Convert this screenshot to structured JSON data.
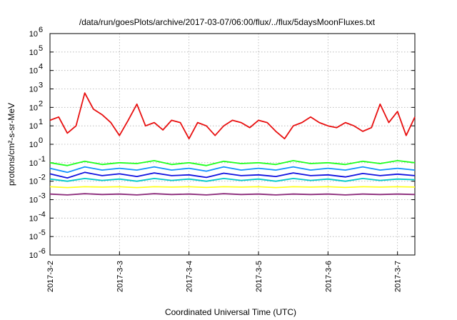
{
  "chart_data": {
    "type": "line",
    "title": "/data/run/goesPlots/archive/2017-03-07/06:00/flux/../flux/5daysMoonFluxes.txt",
    "xlabel": "Coordinated Universal Time (UTC)",
    "ylabel": "protons/cm²-s-sr-MeV",
    "yscale": "log",
    "xlim": [
      "2017-03-02",
      "2017-03-07 06:00"
    ],
    "ylim": [
      1e-06,
      1000000.0
    ],
    "grid": true,
    "legend": "none",
    "x_tick_labels": [
      "2017-3-2",
      "2017-3-3",
      "2017-3-4",
      "2017-3-5",
      "2017-3-6",
      "2017-3-7"
    ],
    "y_tick_labels": [
      {
        "base": "10",
        "exp": "-6"
      },
      {
        "base": "10",
        "exp": "-5"
      },
      {
        "base": "10",
        "exp": "-4"
      },
      {
        "base": "10",
        "exp": "-3"
      },
      {
        "base": "10",
        "exp": "-2"
      },
      {
        "base": "10",
        "exp": "-1"
      },
      {
        "base": "10",
        "exp": "0"
      },
      {
        "base": "10",
        "exp": "1"
      },
      {
        "base": "10",
        "exp": "2"
      },
      {
        "base": "10",
        "exp": "3"
      },
      {
        "base": "10",
        "exp": "4"
      },
      {
        "base": "10",
        "exp": "5"
      },
      {
        "base": "10",
        "exp": "6"
      }
    ],
    "series": [
      {
        "color": "#e81010",
        "x": [
          "2017-03-02 00:00",
          "2017-03-02 03:00",
          "2017-03-02 06:00",
          "2017-03-02 09:00",
          "2017-03-02 12:00",
          "2017-03-02 15:00",
          "2017-03-02 18:00",
          "2017-03-02 21:00",
          "2017-03-03 00:00",
          "2017-03-03 03:00",
          "2017-03-03 06:00",
          "2017-03-03 09:00",
          "2017-03-03 12:00",
          "2017-03-03 15:00",
          "2017-03-03 18:00",
          "2017-03-03 21:00",
          "2017-03-04 00:00",
          "2017-03-04 03:00",
          "2017-03-04 06:00",
          "2017-03-04 09:00",
          "2017-03-04 12:00",
          "2017-03-04 15:00",
          "2017-03-04 18:00",
          "2017-03-04 21:00",
          "2017-03-05 00:00",
          "2017-03-05 03:00",
          "2017-03-05 06:00",
          "2017-03-05 09:00",
          "2017-03-05 12:00",
          "2017-03-05 15:00",
          "2017-03-05 18:00",
          "2017-03-05 21:00",
          "2017-03-06 00:00",
          "2017-03-06 03:00",
          "2017-03-06 06:00",
          "2017-03-06 09:00",
          "2017-03-06 12:00",
          "2017-03-06 15:00",
          "2017-03-06 18:00",
          "2017-03-06 21:00",
          "2017-03-07 00:00",
          "2017-03-07 03:00",
          "2017-03-07 06:00"
        ],
        "y": [
          20,
          30,
          4,
          10,
          600,
          80,
          40,
          15,
          3,
          20,
          150,
          10,
          15,
          6,
          20,
          15,
          2,
          15,
          10,
          3,
          10,
          20,
          15,
          8,
          20,
          15,
          5,
          2,
          10,
          15,
          30,
          15,
          10,
          8,
          15,
          10,
          5,
          8,
          150,
          15,
          60,
          3,
          30
        ]
      },
      {
        "color": "#20ff20",
        "x": [
          "2017-03-02 00:00",
          "2017-03-02 06:00",
          "2017-03-02 12:00",
          "2017-03-02 18:00",
          "2017-03-03 00:00",
          "2017-03-03 06:00",
          "2017-03-03 12:00",
          "2017-03-03 18:00",
          "2017-03-04 00:00",
          "2017-03-04 06:00",
          "2017-03-04 12:00",
          "2017-03-04 18:00",
          "2017-03-05 00:00",
          "2017-03-05 06:00",
          "2017-03-05 12:00",
          "2017-03-05 18:00",
          "2017-03-06 00:00",
          "2017-03-06 06:00",
          "2017-03-06 12:00",
          "2017-03-06 18:00",
          "2017-03-07 00:00",
          "2017-03-07 06:00"
        ],
        "y": [
          0.1,
          0.07,
          0.12,
          0.08,
          0.1,
          0.09,
          0.13,
          0.08,
          0.1,
          0.07,
          0.12,
          0.09,
          0.1,
          0.08,
          0.13,
          0.09,
          0.1,
          0.08,
          0.12,
          0.09,
          0.13,
          0.1
        ]
      },
      {
        "color": "#1090ff",
        "x": [
          "2017-03-02 00:00",
          "2017-03-02 06:00",
          "2017-03-02 12:00",
          "2017-03-02 18:00",
          "2017-03-03 00:00",
          "2017-03-03 06:00",
          "2017-03-03 12:00",
          "2017-03-03 18:00",
          "2017-03-04 00:00",
          "2017-03-04 06:00",
          "2017-03-04 12:00",
          "2017-03-04 18:00",
          "2017-03-05 00:00",
          "2017-03-05 06:00",
          "2017-03-05 12:00",
          "2017-03-05 18:00",
          "2017-03-06 00:00",
          "2017-03-06 06:00",
          "2017-03-06 12:00",
          "2017-03-06 18:00",
          "2017-03-07 00:00",
          "2017-03-07 06:00"
        ],
        "y": [
          0.05,
          0.03,
          0.06,
          0.04,
          0.05,
          0.04,
          0.06,
          0.04,
          0.05,
          0.035,
          0.06,
          0.04,
          0.05,
          0.04,
          0.06,
          0.04,
          0.05,
          0.04,
          0.06,
          0.04,
          0.05,
          0.04
        ]
      },
      {
        "color": "#1010e0",
        "x": [
          "2017-03-02 00:00",
          "2017-03-02 06:00",
          "2017-03-02 12:00",
          "2017-03-02 18:00",
          "2017-03-03 00:00",
          "2017-03-03 06:00",
          "2017-03-03 12:00",
          "2017-03-03 18:00",
          "2017-03-04 00:00",
          "2017-03-04 06:00",
          "2017-03-04 12:00",
          "2017-03-04 18:00",
          "2017-03-05 00:00",
          "2017-03-05 06:00",
          "2017-03-05 12:00",
          "2017-03-05 18:00",
          "2017-03-06 00:00",
          "2017-03-06 06:00",
          "2017-03-06 12:00",
          "2017-03-06 18:00",
          "2017-03-07 00:00",
          "2017-03-07 06:00"
        ],
        "y": [
          0.025,
          0.015,
          0.03,
          0.02,
          0.025,
          0.018,
          0.028,
          0.02,
          0.022,
          0.016,
          0.027,
          0.02,
          0.022,
          0.018,
          0.028,
          0.02,
          0.022,
          0.017,
          0.026,
          0.02,
          0.024,
          0.02
        ]
      },
      {
        "color": "#00c8c8",
        "x": [
          "2017-03-02 00:00",
          "2017-03-02 06:00",
          "2017-03-02 12:00",
          "2017-03-02 18:00",
          "2017-03-03 00:00",
          "2017-03-03 06:00",
          "2017-03-03 12:00",
          "2017-03-03 18:00",
          "2017-03-04 00:00",
          "2017-03-04 06:00",
          "2017-03-04 12:00",
          "2017-03-04 18:00",
          "2017-03-05 00:00",
          "2017-03-05 06:00",
          "2017-03-05 12:00",
          "2017-03-05 18:00",
          "2017-03-06 00:00",
          "2017-03-06 06:00",
          "2017-03-06 12:00",
          "2017-03-06 18:00",
          "2017-03-07 00:00",
          "2017-03-07 06:00"
        ],
        "y": [
          0.013,
          0.01,
          0.014,
          0.011,
          0.013,
          0.01,
          0.014,
          0.011,
          0.013,
          0.01,
          0.014,
          0.011,
          0.013,
          0.01,
          0.014,
          0.011,
          0.013,
          0.01,
          0.014,
          0.011,
          0.013,
          0.012
        ]
      },
      {
        "color": "#ffff20",
        "x": [
          "2017-03-02 00:00",
          "2017-03-02 06:00",
          "2017-03-02 12:00",
          "2017-03-02 18:00",
          "2017-03-03 00:00",
          "2017-03-03 06:00",
          "2017-03-03 12:00",
          "2017-03-03 18:00",
          "2017-03-04 00:00",
          "2017-03-04 06:00",
          "2017-03-04 12:00",
          "2017-03-04 18:00",
          "2017-03-05 00:00",
          "2017-03-05 06:00",
          "2017-03-05 12:00",
          "2017-03-05 18:00",
          "2017-03-06 00:00",
          "2017-03-06 06:00",
          "2017-03-06 12:00",
          "2017-03-06 18:00",
          "2017-03-07 00:00",
          "2017-03-07 06:00"
        ],
        "y": [
          0.005,
          0.0045,
          0.005,
          0.0048,
          0.005,
          0.0045,
          0.005,
          0.0048,
          0.005,
          0.0046,
          0.005,
          0.0048,
          0.005,
          0.0045,
          0.005,
          0.0048,
          0.005,
          0.0046,
          0.005,
          0.0048,
          0.005,
          0.0048
        ]
      },
      {
        "color": "#8b2a7a",
        "x": [
          "2017-03-02 00:00",
          "2017-03-02 06:00",
          "2017-03-02 12:00",
          "2017-03-02 18:00",
          "2017-03-03 00:00",
          "2017-03-03 06:00",
          "2017-03-03 12:00",
          "2017-03-03 18:00",
          "2017-03-04 00:00",
          "2017-03-04 06:00",
          "2017-03-04 12:00",
          "2017-03-04 18:00",
          "2017-03-05 00:00",
          "2017-03-05 06:00",
          "2017-03-05 12:00",
          "2017-03-05 18:00",
          "2017-03-06 00:00",
          "2017-03-06 06:00",
          "2017-03-06 12:00",
          "2017-03-06 18:00",
          "2017-03-07 00:00",
          "2017-03-07 06:00"
        ],
        "y": [
          0.002,
          0.0018,
          0.0021,
          0.0019,
          0.002,
          0.0018,
          0.0021,
          0.0019,
          0.002,
          0.0018,
          0.0021,
          0.0019,
          0.002,
          0.0018,
          0.002,
          0.0019,
          0.002,
          0.0018,
          0.002,
          0.0019,
          0.002,
          0.0019
        ]
      }
    ]
  }
}
